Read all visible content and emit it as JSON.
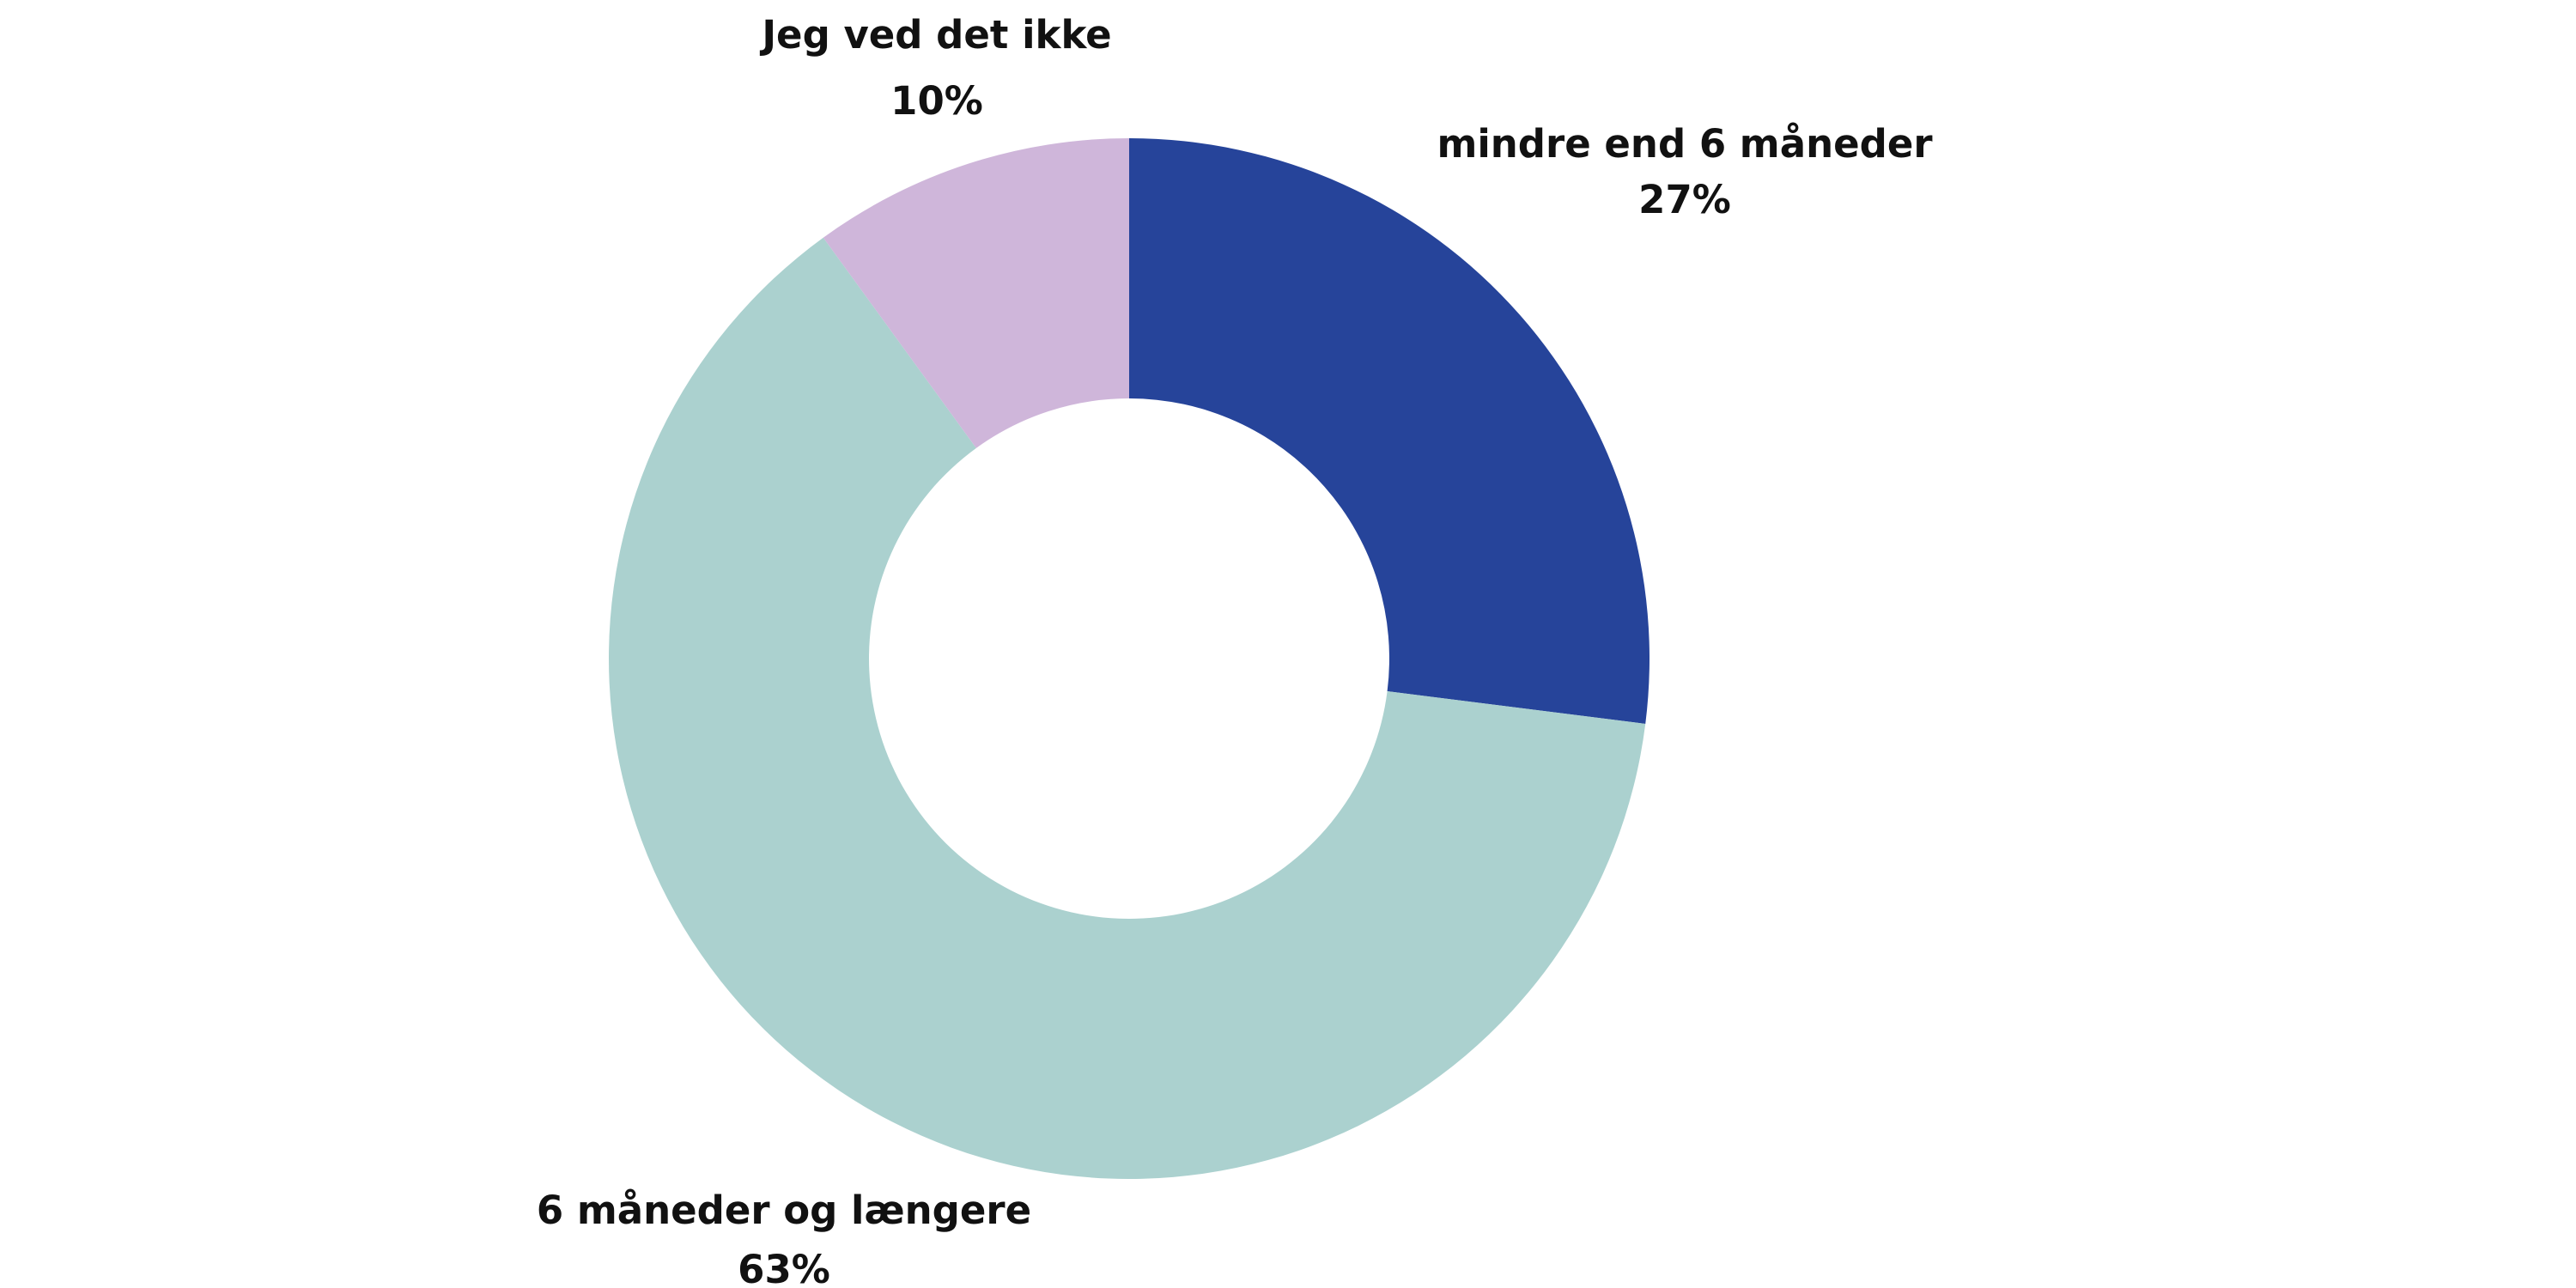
{
  "chart_data": {
    "type": "pie",
    "variant": "donut",
    "categories": [
      "mindre end 6 måneder",
      "6 måneder og længere",
      "Jeg ved det ikke"
    ],
    "values": [
      27,
      63,
      10
    ],
    "value_labels": [
      "27%",
      "63%",
      "10%"
    ],
    "colors": [
      "#26449a",
      "#abd1cf",
      "#cfb6da"
    ],
    "title": "",
    "legend": "none",
    "data_labels": "outside"
  }
}
